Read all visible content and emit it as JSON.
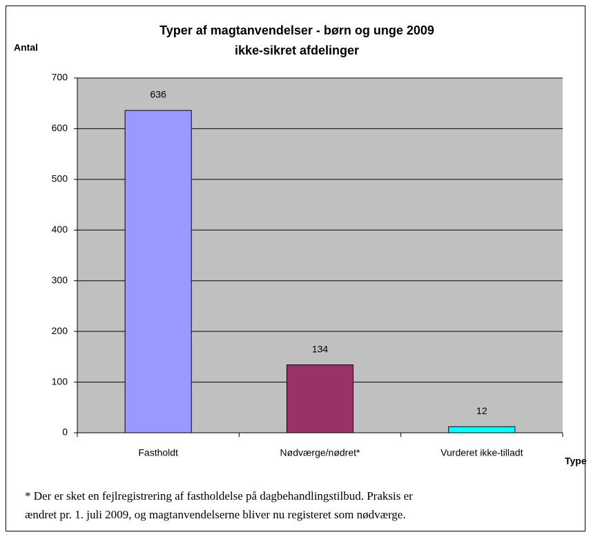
{
  "chart_data": {
    "type": "bar",
    "title": [
      "Typer af magtanvendelser - børn og unge 2009",
      "ikke-sikret afdelinger"
    ],
    "y_label": "Antal",
    "x_label": "Type",
    "categories": [
      "Fastholdt",
      "Nødværge/nødret*",
      "Vurderet ikke-tilladt"
    ],
    "values": [
      636,
      134,
      12
    ],
    "colors": [
      "#9999ff",
      "#993366",
      "#00ffff"
    ],
    "ylim": [
      0,
      700
    ],
    "yticks": [
      0,
      100,
      200,
      300,
      400,
      500,
      600,
      700
    ],
    "grid": true,
    "note": [
      "* Der er sket en fejlregistrering af fastholdelse på dagbehandlingstilbud. Praksis er",
      "ændret pr. 1. juli 2009, og magtanvendelserne bliver nu registeret som nødværge."
    ]
  }
}
